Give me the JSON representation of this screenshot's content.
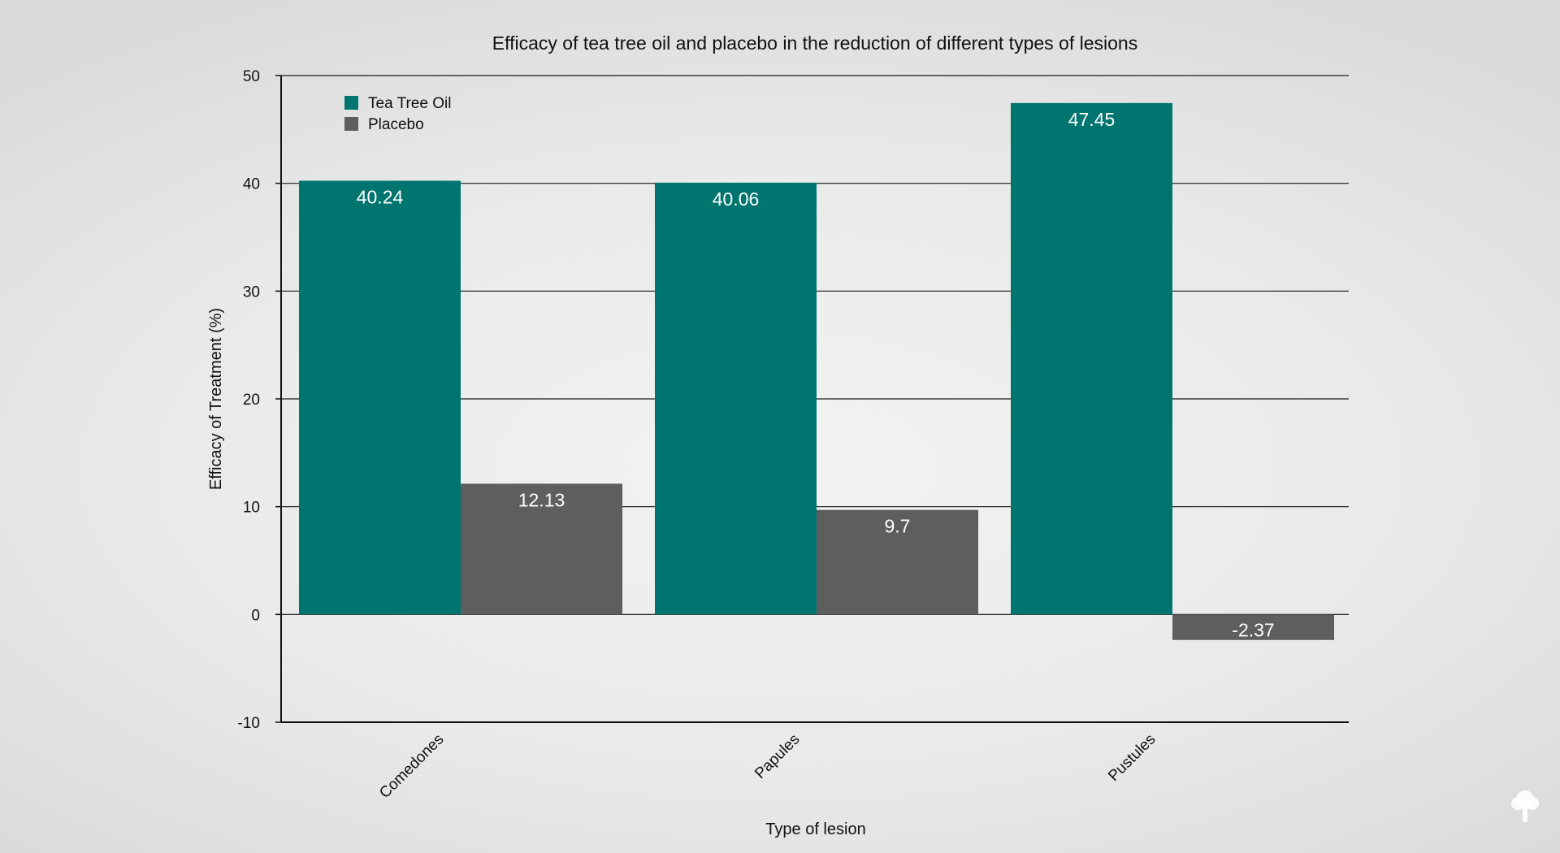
{
  "chart_data": {
    "type": "bar",
    "title": "Efficacy of tea tree oil and placebo in the reduction of different types of lesions",
    "xlabel": "Type of lesion",
    "ylabel": "Efficacy of Treatment (%)",
    "categories": [
      "Comedones",
      "Papules",
      "Pustules"
    ],
    "series": [
      {
        "name": "Tea Tree Oil",
        "values": [
          40.24,
          40.06,
          47.45
        ],
        "color": "#00756f"
      },
      {
        "name": "Placebo",
        "values": [
          12.13,
          9.7,
          -2.37
        ],
        "color": "#5e5e5e"
      }
    ],
    "ylim": [
      -10,
      50
    ],
    "yticks": [
      "-10",
      "0",
      "10",
      "20",
      "30",
      "40",
      "50"
    ],
    "data_labels": [
      [
        "40.24",
        "40.06",
        "47.45"
      ],
      [
        "12.13",
        "9.7",
        "-2.37"
      ]
    ],
    "grid": true,
    "legend_position": "top-left"
  },
  "logo": {
    "icon": "tree-icon",
    "color": "#ffffff"
  }
}
